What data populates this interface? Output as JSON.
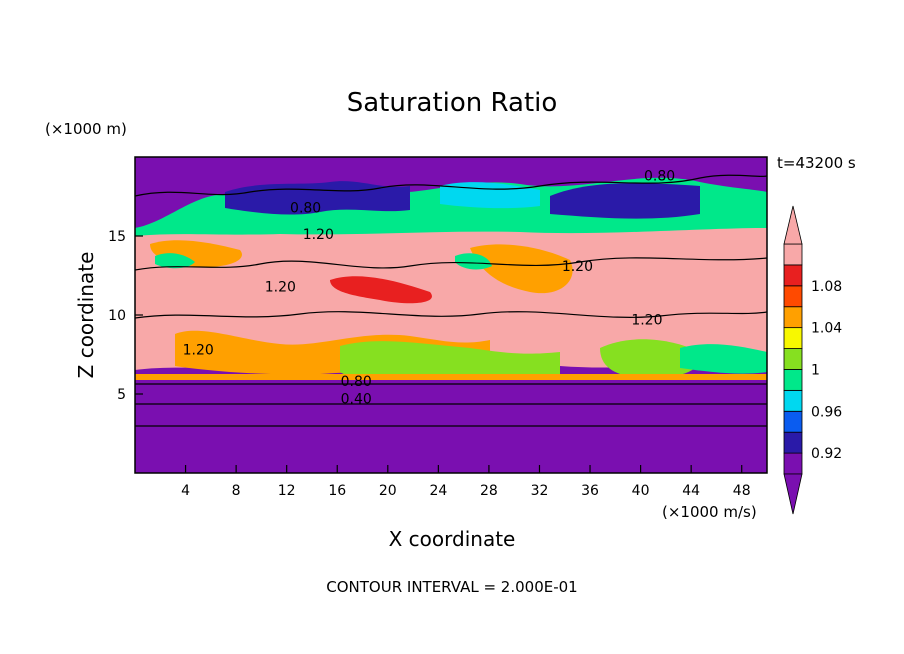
{
  "chart_data": {
    "type": "heatmap",
    "title": "Saturation Ratio",
    "xlabel": "X coordinate",
    "ylabel": "Z coordinate",
    "x_unit_label": "(×1000 m/s)",
    "y_unit_label": "(×1000 m)",
    "time_label": "t=43200 s",
    "footer": "CONTOUR INTERVAL = 2.000E-01",
    "xlim": [
      0,
      50
    ],
    "ylim": [
      0,
      20
    ],
    "x_ticks": [
      4,
      8,
      12,
      16,
      20,
      24,
      28,
      32,
      36,
      40,
      44,
      48
    ],
    "y_ticks": [
      5,
      10,
      15
    ],
    "colorbar": {
      "levels": [
        0.92,
        0.96,
        1,
        1.04,
        1.08
      ],
      "label_texts": [
        "0.92",
        "0.96",
        "1",
        "1.04",
        "1.08"
      ],
      "colors": [
        "#7a0fb0",
        "#2a1aa8",
        "#0a5cf0",
        "#00d8f0",
        "#00e88a",
        "#86e020",
        "#f8f800",
        "#ffa000",
        "#ff4a00",
        "#e82020",
        "#f8a8a8"
      ]
    },
    "contour_labels": [
      {
        "text": "0.80",
        "x": 41.5,
        "z": 18.5
      },
      {
        "text": "0.80",
        "x": 13.5,
        "z": 16.5
      },
      {
        "text": "1.20",
        "x": 14.5,
        "z": 14.8
      },
      {
        "text": "1.20",
        "x": 35.0,
        "z": 12.8
      },
      {
        "text": "1.20",
        "x": 11.5,
        "z": 11.5
      },
      {
        "text": "1.20",
        "x": 40.5,
        "z": 9.4
      },
      {
        "text": "1.20",
        "x": 5.0,
        "z": 7.5
      },
      {
        "text": "0.80",
        "x": 17.5,
        "z": 5.5
      },
      {
        "text": "0.40",
        "x": 17.5,
        "z": 4.4
      }
    ]
  }
}
